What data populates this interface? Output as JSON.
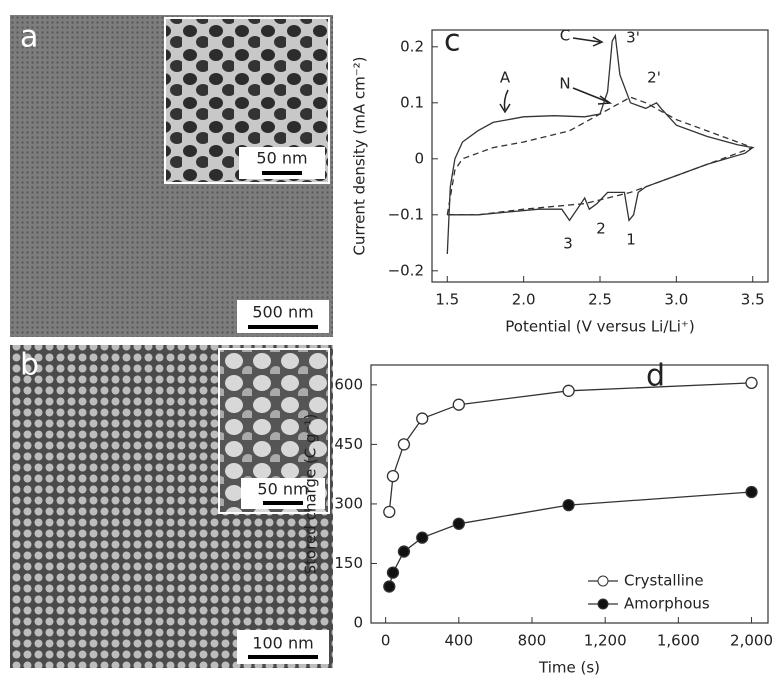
{
  "images": [
    {
      "label": "a",
      "scale_bar": "500 nm",
      "inset_scale_bar": "50 nm"
    },
    {
      "label": "b",
      "scale_bar": "100 nm",
      "inset_scale_bar": "50 nm"
    }
  ],
  "chart_data": [
    {
      "type": "line",
      "panel": "c",
      "xlabel": "Potential (V versus Li/Li⁺)",
      "ylabel": "Current density (mA cm⁻²)",
      "xlim": [
        1.4,
        3.6
      ],
      "ylim": [
        -0.22,
        0.23
      ],
      "xticks": [
        1.5,
        {
          "value": 2,
          "label": "2.0"
        },
        2.5,
        {
          "value": 3,
          "label": "3.0"
        },
        3.5
      ],
      "yticks": [
        {
          "value": -0.2,
          "label": "−0.2"
        },
        {
          "value": -0.1,
          "label": "−0.1"
        },
        0,
        0.1,
        0.2
      ],
      "annotations": [
        "A",
        "C",
        "N",
        "3'",
        "2'",
        "3",
        "2",
        "1"
      ],
      "series": [
        {
          "color": "#333333",
          "dash": false,
          "x": [
            1.5,
            1.52,
            1.55,
            1.6,
            1.7,
            1.8,
            2.0,
            2.2,
            2.4,
            2.5,
            2.55,
            2.58,
            2.6,
            2.63,
            2.7,
            2.8,
            2.87,
            2.9,
            3.0,
            3.2,
            3.4,
            3.5,
            3.45,
            3.2,
            3.0,
            2.8,
            2.75,
            2.72,
            2.69,
            2.66,
            2.55,
            2.48,
            2.43,
            2.4,
            2.35,
            2.3,
            2.25,
            2.1,
            1.9,
            1.7,
            1.5
          ],
          "values": [
            -0.17,
            -0.05,
            0.0,
            0.03,
            0.05,
            0.065,
            0.075,
            0.077,
            0.075,
            0.08,
            0.12,
            0.21,
            0.22,
            0.15,
            0.1,
            0.09,
            0.1,
            0.09,
            0.06,
            0.04,
            0.025,
            0.02,
            0.01,
            -0.01,
            -0.03,
            -0.05,
            -0.06,
            -0.1,
            -0.11,
            -0.06,
            -0.06,
            -0.08,
            -0.09,
            -0.07,
            -0.09,
            -0.11,
            -0.09,
            -0.09,
            -0.095,
            -0.1,
            -0.1
          ]
        },
        {
          "color": "#333333",
          "dash": true,
          "x": [
            1.5,
            1.55,
            1.6,
            1.8,
            2.0,
            2.3,
            2.5,
            2.7,
            2.8,
            3.0,
            3.3,
            3.5,
            3.3,
            3.0,
            2.7,
            2.4,
            2.0,
            1.7,
            1.5
          ],
          "values": [
            -0.1,
            -0.02,
            0.0,
            0.02,
            0.03,
            0.05,
            0.08,
            0.11,
            0.1,
            0.07,
            0.04,
            0.02,
            0.0,
            -0.03,
            -0.06,
            -0.08,
            -0.09,
            -0.1,
            -0.1
          ]
        }
      ]
    },
    {
      "type": "line",
      "panel": "d",
      "xlabel": "Time (s)",
      "ylabel": "Stored charge (C g⁻¹)",
      "xlim": [
        -80,
        2090
      ],
      "ylim": [
        0,
        650
      ],
      "xticks": [
        0,
        400,
        800,
        {
          "value": 1200,
          "label": "1,200"
        },
        {
          "value": 1600,
          "label": "1,600"
        },
        {
          "value": 2000,
          "label": "2,000"
        }
      ],
      "yticks": [
        0,
        150,
        300,
        450,
        600
      ],
      "series": [
        {
          "name": "Crystalline",
          "color": "#333333",
          "marker_fill": "#ffffff",
          "x": [
            20,
            40,
            100,
            200,
            400,
            1000,
            2000
          ],
          "values": [
            280,
            370,
            450,
            515,
            550,
            585,
            605
          ]
        },
        {
          "name": "Amorphous",
          "color": "#333333",
          "marker_fill": "#111111",
          "x": [
            20,
            40,
            100,
            200,
            400,
            1000,
            2000
          ],
          "values": [
            92,
            127,
            180,
            215,
            250,
            297,
            330
          ]
        }
      ]
    }
  ]
}
